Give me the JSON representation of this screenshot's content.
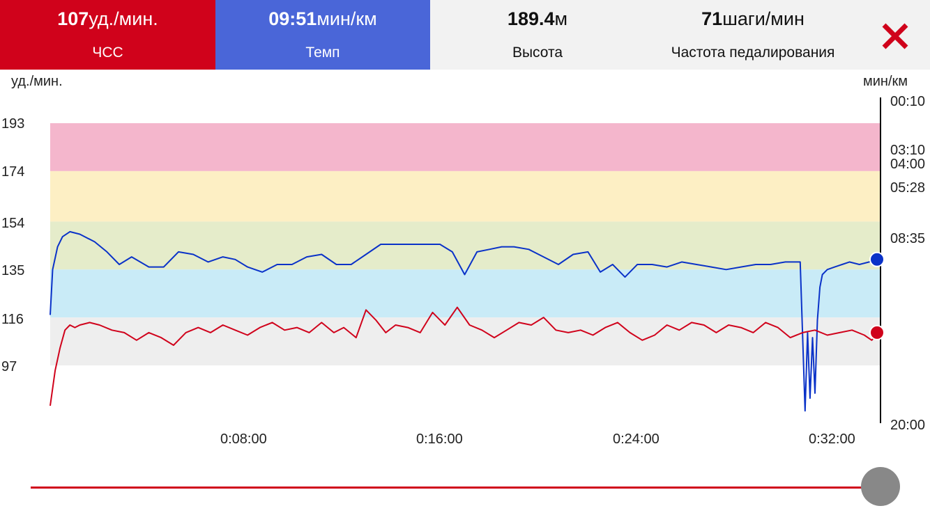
{
  "tabs": [
    {
      "value": "107",
      "unit": "уд./мин.",
      "label": "ЧСС"
    },
    {
      "value": "09:51",
      "unit": "мин/км",
      "label": "Темп"
    },
    {
      "value": "189.4",
      "unit": "м",
      "label": "Высота"
    },
    {
      "value": "71",
      "unit": "шаги/мин",
      "label": "Частота педалирования"
    }
  ],
  "close_icon": "close-icon",
  "colors": {
    "hr": "#d0021b",
    "pace": "#4a66d8",
    "pace_line": "#0a32c8",
    "zone_5": "#f4b6cc",
    "zone_4": "#fdefc4",
    "zone_3": "#e5ecca",
    "zone_2": "#c9ebf7",
    "zone_1": "#eeeeee"
  },
  "chart_data": {
    "type": "line",
    "left_axis": {
      "unit": "уд./мин.",
      "ticks": [
        "193",
        "174",
        "154",
        "135",
        "116",
        "97"
      ],
      "range": [
        78,
        193
      ]
    },
    "right_axis": {
      "unit": "мин/км",
      "ticks": [
        "00:10",
        "03:10",
        "04:00",
        "05:28",
        "08:35",
        "20:00"
      ]
    },
    "x_axis": {
      "ticks": [
        "0:08:00",
        "0:16:00",
        "0:24:00",
        "0:32:00"
      ],
      "range_min": [
        0,
        33.6
      ]
    },
    "hr_zones": [
      {
        "from": 174,
        "to": 193,
        "color": "#f4b6cc"
      },
      {
        "from": 154,
        "to": 174,
        "color": "#fdefc4"
      },
      {
        "from": 135,
        "to": 154,
        "color": "#e5ecca"
      },
      {
        "from": 116,
        "to": 135,
        "color": "#c9ebf7"
      },
      {
        "from": 97,
        "to": 116,
        "color": "#eeeeee"
      }
    ],
    "series": [
      {
        "name": "ЧСС",
        "color": "#d0021b",
        "x": [
          0,
          0.2,
          0.4,
          0.6,
          0.8,
          1.0,
          1.2,
          1.6,
          2.0,
          2.5,
          3.0,
          3.5,
          4.0,
          4.5,
          5.0,
          5.5,
          6.0,
          6.5,
          7.0,
          7.5,
          8.0,
          8.5,
          9.0,
          9.5,
          10.0,
          10.5,
          11.0,
          11.5,
          11.9,
          12.4,
          12.8,
          13.2,
          13.6,
          14.0,
          14.5,
          15.0,
          15.5,
          16.0,
          16.5,
          17.0,
          17.5,
          18.0,
          18.5,
          19.0,
          19.5,
          20.0,
          20.5,
          21.0,
          21.5,
          22.0,
          22.5,
          23.0,
          23.5,
          24.0,
          24.5,
          25.0,
          25.5,
          26.0,
          26.5,
          27.0,
          27.5,
          28.0,
          28.5,
          29.0,
          29.5,
          30.0,
          30.5,
          31.0,
          31.5,
          32.0,
          32.5,
          33.0,
          33.3,
          33.6
        ],
        "values": [
          81,
          95,
          104,
          111,
          113,
          112,
          113,
          114,
          113,
          111,
          110,
          107,
          110,
          108,
          105,
          110,
          112,
          110,
          113,
          111,
          109,
          112,
          114,
          111,
          112,
          110,
          114,
          110,
          112,
          108,
          119,
          115,
          110,
          113,
          112,
          110,
          118,
          113,
          120,
          113,
          111,
          108,
          111,
          114,
          113,
          116,
          111,
          110,
          111,
          109,
          112,
          114,
          110,
          107,
          109,
          113,
          111,
          114,
          113,
          110,
          113,
          112,
          110,
          114,
          112,
          108,
          110,
          111,
          109,
          110,
          111,
          109,
          107,
          110
        ]
      },
      {
        "name": "Темп",
        "color": "#0a32c8",
        "x": [
          0,
          0.1,
          0.3,
          0.5,
          0.8,
          1.2,
          1.8,
          2.3,
          2.8,
          3.3,
          4.0,
          4.6,
          5.2,
          5.8,
          6.4,
          7.0,
          7.5,
          8.0,
          8.6,
          9.2,
          9.8,
          10.4,
          11.0,
          11.6,
          12.2,
          12.8,
          13.4,
          14.0,
          14.6,
          15.2,
          15.8,
          16.3,
          16.8,
          17.3,
          17.8,
          18.3,
          18.8,
          19.4,
          20.0,
          20.6,
          21.2,
          21.8,
          22.3,
          22.8,
          23.3,
          23.8,
          24.4,
          25.0,
          25.6,
          26.2,
          26.8,
          27.4,
          28.0,
          28.6,
          29.2,
          29.8,
          30.4,
          30.6,
          30.7,
          30.8,
          30.9,
          31.0,
          31.1,
          31.2,
          31.3,
          31.5,
          31.8,
          32.1,
          32.4,
          32.8,
          33.2,
          33.6
        ],
        "mapped_hr": [
          117,
          135,
          144,
          148,
          150,
          149,
          146,
          142,
          137,
          140,
          136,
          136,
          142,
          141,
          138,
          140,
          139,
          136,
          134,
          137,
          137,
          140,
          141,
          137,
          137,
          141,
          145,
          145,
          145,
          145,
          145,
          142,
          133,
          142,
          143,
          144,
          144,
          143,
          140,
          137,
          141,
          142,
          134,
          137,
          132,
          137,
          137,
          136,
          138,
          137,
          136,
          135,
          136,
          137,
          137,
          138,
          138,
          79,
          110,
          84,
          108,
          86,
          115,
          128,
          133,
          135,
          136,
          137,
          138,
          137,
          138,
          139
        ]
      }
    ],
    "markers": {
      "hr_end": 110,
      "pace_end": 139
    }
  }
}
